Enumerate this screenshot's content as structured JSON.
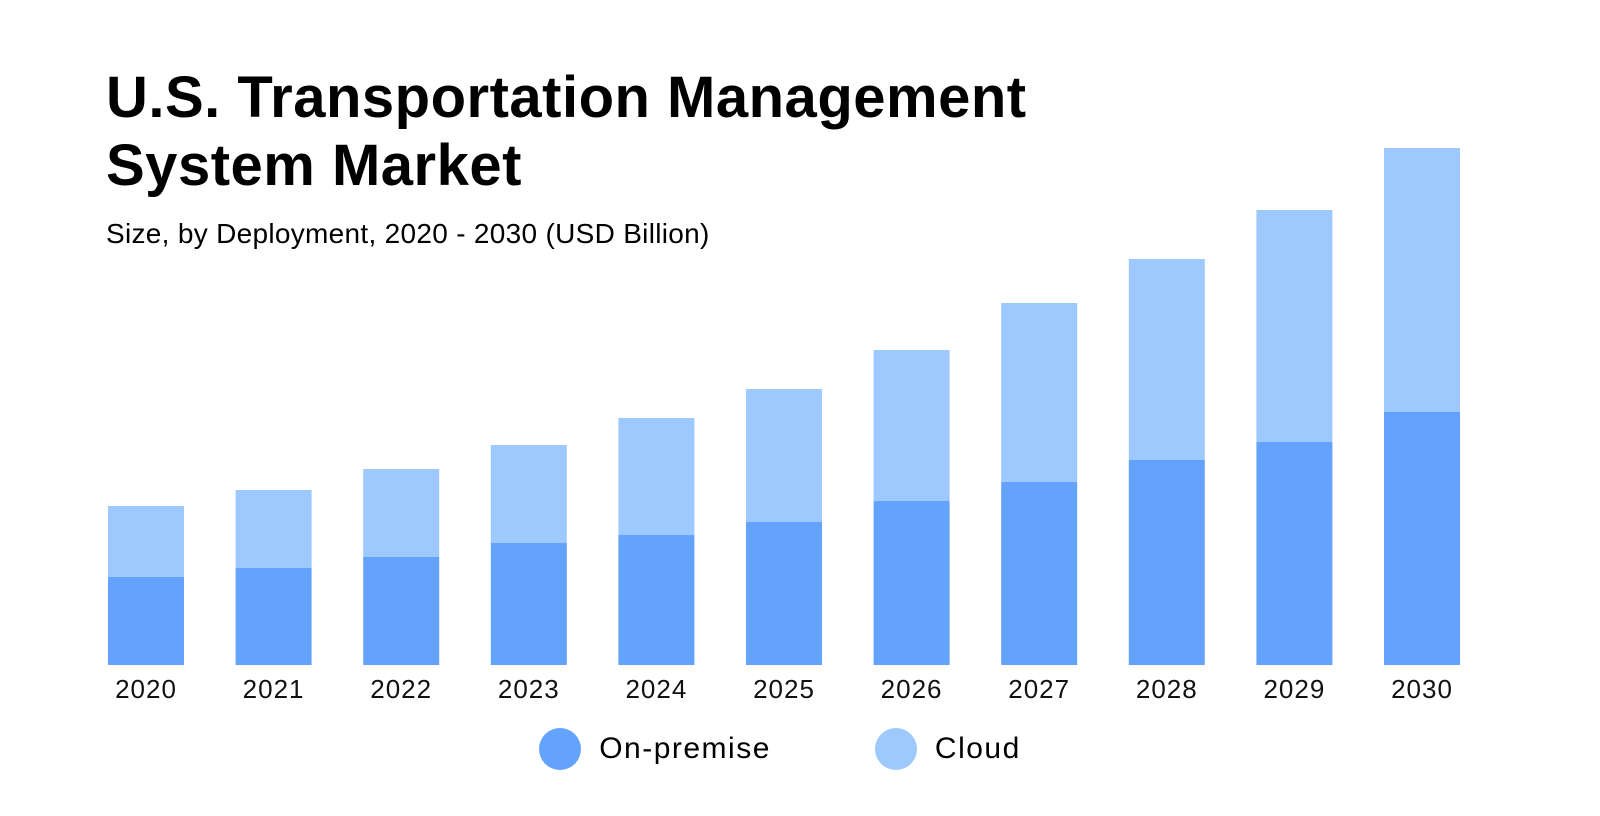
{
  "chart_data": {
    "type": "bar",
    "stacked": true,
    "title": "U.S. Transportation Management System Market",
    "subtitle": "Size, by Deployment, 2020 - 2030 (USD Billion)",
    "xlabel": "",
    "ylabel": "",
    "y_axis_visible": false,
    "grid": false,
    "legend_position": "bottom-center",
    "categories": [
      "2020",
      "2021",
      "2022",
      "2023",
      "2024",
      "2025",
      "2026",
      "2027",
      "2028",
      "2029",
      "2030"
    ],
    "series": [
      {
        "name": "On-premise",
        "color": "#63a3fe",
        "values": [
          4.4,
          4.85,
          5.4,
          6.1,
          6.5,
          7.15,
          8.2,
          9.15,
          10.25,
          11.15,
          12.65
        ]
      },
      {
        "name": "Cloud",
        "color": "#9ec9fe",
        "values": [
          3.55,
          3.9,
          4.4,
          4.9,
          5.85,
          6.65,
          7.55,
          8.95,
          10.05,
          11.6,
          13.2
        ]
      }
    ],
    "ylim": [
      0,
      26
    ]
  }
}
